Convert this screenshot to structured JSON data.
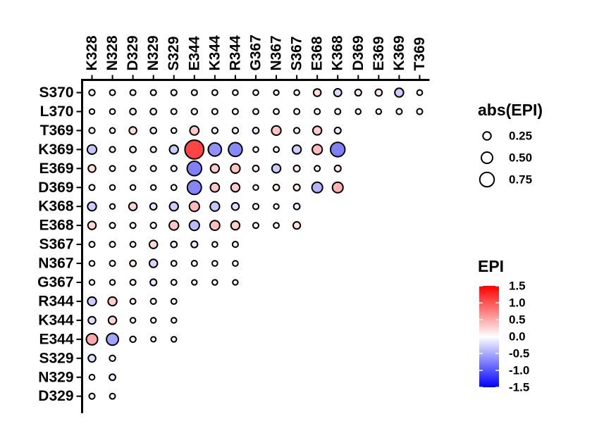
{
  "chart_data": {
    "type": "bubble-heatmap",
    "title": "",
    "xlabel": "",
    "ylabel": "",
    "x_categories": [
      "K328",
      "N328",
      "D329",
      "N329",
      "S329",
      "E344",
      "K344",
      "R344",
      "G367",
      "N367",
      "S367",
      "E368",
      "K368",
      "D369",
      "E369",
      "K369",
      "T369"
    ],
    "y_categories": [
      "S370",
      "L370",
      "T369",
      "K369",
      "E369",
      "D369",
      "K368",
      "E368",
      "S367",
      "N367",
      "G367",
      "R344",
      "K344",
      "E344",
      "S329",
      "N329",
      "D329"
    ],
    "size_legend": {
      "title": "abs(EPI)",
      "values": [
        0.25,
        0.5,
        0.75
      ],
      "labels": [
        "0.25",
        "0.50",
        "0.75"
      ]
    },
    "color_legend": {
      "title": "EPI",
      "range": [
        -1.5,
        1.5
      ],
      "ticks": [
        1.5,
        1.0,
        0.5,
        0.0,
        -0.5,
        -1.0,
        -1.5
      ],
      "tick_labels": [
        "1.5",
        "1.0",
        "0.5",
        "0.0",
        "-0.5",
        "-1.0",
        "-1.5"
      ],
      "colors": {
        "low": "#0000ff",
        "mid": "#ffffff",
        "high": "#ff0000"
      }
    },
    "points": [
      {
        "x": "K328",
        "y": "S370",
        "epi": 0.08
      },
      {
        "x": "N328",
        "y": "S370",
        "epi": 0.05
      },
      {
        "x": "D329",
        "y": "S370",
        "epi": 0.06
      },
      {
        "x": "N329",
        "y": "S370",
        "epi": 0.06
      },
      {
        "x": "S329",
        "y": "S370",
        "epi": 0.07
      },
      {
        "x": "E344",
        "y": "S370",
        "epi": 0.06
      },
      {
        "x": "K344",
        "y": "S370",
        "epi": 0.05
      },
      {
        "x": "R344",
        "y": "S370",
        "epi": 0.04
      },
      {
        "x": "G367",
        "y": "S370",
        "epi": 0.04
      },
      {
        "x": "N367",
        "y": "S370",
        "epi": 0.02
      },
      {
        "x": "S367",
        "y": "S370",
        "epi": 0.04
      },
      {
        "x": "E368",
        "y": "S370",
        "epi": 0.2
      },
      {
        "x": "K368",
        "y": "S370",
        "epi": -0.22
      },
      {
        "x": "D369",
        "y": "S370",
        "epi": 0.12
      },
      {
        "x": "E369",
        "y": "S370",
        "epi": 0.15
      },
      {
        "x": "K369",
        "y": "S370",
        "epi": -0.3
      },
      {
        "x": "T369",
        "y": "S370",
        "epi": 0.04
      },
      {
        "x": "K328",
        "y": "L370",
        "epi": 0.02
      },
      {
        "x": "N328",
        "y": "L370",
        "epi": 0.04
      },
      {
        "x": "D329",
        "y": "L370",
        "epi": 0.1
      },
      {
        "x": "N329",
        "y": "L370",
        "epi": -0.1
      },
      {
        "x": "S329",
        "y": "L370",
        "epi": 0.06
      },
      {
        "x": "E344",
        "y": "L370",
        "epi": 0.08
      },
      {
        "x": "K344",
        "y": "L370",
        "epi": 0.06
      },
      {
        "x": "R344",
        "y": "L370",
        "epi": 0.06
      },
      {
        "x": "G367",
        "y": "L370",
        "epi": 0.05
      },
      {
        "x": "N367",
        "y": "L370",
        "epi": 0.05
      },
      {
        "x": "S367",
        "y": "L370",
        "epi": 0.06
      },
      {
        "x": "E368",
        "y": "L370",
        "epi": 0.06
      },
      {
        "x": "K368",
        "y": "L370",
        "epi": 0.06
      },
      {
        "x": "D369",
        "y": "L370",
        "epi": 0.03
      },
      {
        "x": "E369",
        "y": "L370",
        "epi": 0.03
      },
      {
        "x": "K369",
        "y": "L370",
        "epi": 0.06
      },
      {
        "x": "T369",
        "y": "L370",
        "epi": 0.06
      },
      {
        "x": "K328",
        "y": "T369",
        "epi": 0.07
      },
      {
        "x": "N328",
        "y": "T369",
        "epi": 0.04
      },
      {
        "x": "D329",
        "y": "T369",
        "epi": 0.2
      },
      {
        "x": "N329",
        "y": "T369",
        "epi": -0.1
      },
      {
        "x": "S329",
        "y": "T369",
        "epi": 0.04
      },
      {
        "x": "E344",
        "y": "T369",
        "epi": 0.32
      },
      {
        "x": "K344",
        "y": "T369",
        "epi": 0.08
      },
      {
        "x": "R344",
        "y": "T369",
        "epi": 0.08
      },
      {
        "x": "G367",
        "y": "T369",
        "epi": -0.1
      },
      {
        "x": "N367",
        "y": "T369",
        "epi": 0.35
      },
      {
        "x": "S367",
        "y": "T369",
        "epi": 0.07
      },
      {
        "x": "E368",
        "y": "T369",
        "epi": 0.3
      },
      {
        "x": "K368",
        "y": "T369",
        "epi": -0.12
      },
      {
        "x": "K328",
        "y": "K369",
        "epi": -0.35
      },
      {
        "x": "N328",
        "y": "K369",
        "epi": 0.06
      },
      {
        "x": "D329",
        "y": "K369",
        "epi": -0.1
      },
      {
        "x": "N329",
        "y": "K369",
        "epi": 0.07
      },
      {
        "x": "S329",
        "y": "K369",
        "epi": -0.3
      },
      {
        "x": "E344",
        "y": "K369",
        "epi": 1.1
      },
      {
        "x": "K344",
        "y": "K369",
        "epi": -0.65
      },
      {
        "x": "R344",
        "y": "K369",
        "epi": -0.7
      },
      {
        "x": "G367",
        "y": "K369",
        "epi": 0.04
      },
      {
        "x": "N367",
        "y": "K369",
        "epi": 0.05
      },
      {
        "x": "S367",
        "y": "K369",
        "epi": -0.3
      },
      {
        "x": "E368",
        "y": "K369",
        "epi": 0.4
      },
      {
        "x": "K368",
        "y": "K369",
        "epi": -0.75
      },
      {
        "x": "K328",
        "y": "E369",
        "epi": 0.2
      },
      {
        "x": "N328",
        "y": "E369",
        "epi": 0.05
      },
      {
        "x": "D329",
        "y": "E369",
        "epi": 0.06
      },
      {
        "x": "N329",
        "y": "E369",
        "epi": 0.06
      },
      {
        "x": "S329",
        "y": "E369",
        "epi": 0.07
      },
      {
        "x": "E344",
        "y": "E369",
        "epi": -0.75
      },
      {
        "x": "K344",
        "y": "E369",
        "epi": 0.3
      },
      {
        "x": "R344",
        "y": "E369",
        "epi": 0.35
      },
      {
        "x": "G367",
        "y": "E369",
        "epi": 0.1
      },
      {
        "x": "N367",
        "y": "E369",
        "epi": -0.3
      },
      {
        "x": "S367",
        "y": "E369",
        "epi": 0.12
      },
      {
        "x": "E368",
        "y": "E369",
        "epi": 0.06
      },
      {
        "x": "K368",
        "y": "E369",
        "epi": 0.12
      },
      {
        "x": "K328",
        "y": "D369",
        "epi": 0.06
      },
      {
        "x": "N328",
        "y": "D369",
        "epi": 0.03
      },
      {
        "x": "D329",
        "y": "D369",
        "epi": 0.03
      },
      {
        "x": "N329",
        "y": "D369",
        "epi": 0.03
      },
      {
        "x": "S329",
        "y": "D369",
        "epi": 0.05
      },
      {
        "x": "E344",
        "y": "D369",
        "epi": -0.72
      },
      {
        "x": "K344",
        "y": "D369",
        "epi": 0.32
      },
      {
        "x": "R344",
        "y": "D369",
        "epi": 0.3
      },
      {
        "x": "G367",
        "y": "D369",
        "epi": 0.03
      },
      {
        "x": "N367",
        "y": "D369",
        "epi": 0.1
      },
      {
        "x": "S367",
        "y": "D369",
        "epi": 0.12
      },
      {
        "x": "E368",
        "y": "D369",
        "epi": -0.45
      },
      {
        "x": "K368",
        "y": "D369",
        "epi": 0.45
      },
      {
        "x": "K328",
        "y": "K368",
        "epi": -0.3
      },
      {
        "x": "N328",
        "y": "K368",
        "epi": 0.02
      },
      {
        "x": "D329",
        "y": "K368",
        "epi": 0.25
      },
      {
        "x": "N329",
        "y": "K368",
        "epi": -0.15
      },
      {
        "x": "S329",
        "y": "K368",
        "epi": -0.3
      },
      {
        "x": "E344",
        "y": "K368",
        "epi": 0.4
      },
      {
        "x": "K344",
        "y": "K368",
        "epi": -0.35
      },
      {
        "x": "R344",
        "y": "K368",
        "epi": -0.2
      },
      {
        "x": "G367",
        "y": "K368",
        "epi": 0.07
      },
      {
        "x": "N367",
        "y": "K368",
        "epi": 0.02
      },
      {
        "x": "S367",
        "y": "K368",
        "epi": -0.1
      },
      {
        "x": "K328",
        "y": "E368",
        "epi": 0.25
      },
      {
        "x": "N328",
        "y": "E368",
        "epi": 0.06
      },
      {
        "x": "D329",
        "y": "E368",
        "epi": 0.06
      },
      {
        "x": "N329",
        "y": "E368",
        "epi": 0.08
      },
      {
        "x": "S329",
        "y": "E368",
        "epi": 0.35
      },
      {
        "x": "E344",
        "y": "E368",
        "epi": -0.4
      },
      {
        "x": "K344",
        "y": "E368",
        "epi": 0.38
      },
      {
        "x": "R344",
        "y": "E368",
        "epi": 0.3
      },
      {
        "x": "G367",
        "y": "E368",
        "epi": 0.06
      },
      {
        "x": "N367",
        "y": "E368",
        "epi": 0.05
      },
      {
        "x": "S367",
        "y": "E368",
        "epi": 0.18
      },
      {
        "x": "K328",
        "y": "S367",
        "epi": 0.06
      },
      {
        "x": "N328",
        "y": "S367",
        "epi": 0.06
      },
      {
        "x": "D329",
        "y": "S367",
        "epi": 0.05
      },
      {
        "x": "N329",
        "y": "S367",
        "epi": 0.25
      },
      {
        "x": "S329",
        "y": "S367",
        "epi": -0.1
      },
      {
        "x": "E344",
        "y": "S367",
        "epi": -0.12
      },
      {
        "x": "K344",
        "y": "S367",
        "epi": 0.04
      },
      {
        "x": "R344",
        "y": "S367",
        "epi": -0.06
      },
      {
        "x": "K328",
        "y": "N367",
        "epi": 0.04
      },
      {
        "x": "N328",
        "y": "N367",
        "epi": 0.06
      },
      {
        "x": "D329",
        "y": "N367",
        "epi": 0.1
      },
      {
        "x": "N329",
        "y": "N367",
        "epi": -0.25
      },
      {
        "x": "S329",
        "y": "N367",
        "epi": 0.05
      },
      {
        "x": "E344",
        "y": "N367",
        "epi": -0.06
      },
      {
        "x": "K344",
        "y": "N367",
        "epi": 0.04
      },
      {
        "x": "R344",
        "y": "N367",
        "epi": 0.04
      },
      {
        "x": "K328",
        "y": "G367",
        "epi": 0.03
      },
      {
        "x": "N328",
        "y": "G367",
        "epi": 0.03
      },
      {
        "x": "D329",
        "y": "G367",
        "epi": 0.06
      },
      {
        "x": "N329",
        "y": "G367",
        "epi": -0.12
      },
      {
        "x": "S329",
        "y": "G367",
        "epi": 0.05
      },
      {
        "x": "E344",
        "y": "G367",
        "epi": 0.02
      },
      {
        "x": "K344",
        "y": "G367",
        "epi": 0.03
      },
      {
        "x": "R344",
        "y": "G367",
        "epi": 0.02
      },
      {
        "x": "K328",
        "y": "R344",
        "epi": -0.3
      },
      {
        "x": "N328",
        "y": "R344",
        "epi": 0.3
      },
      {
        "x": "D329",
        "y": "R344",
        "epi": 0.05
      },
      {
        "x": "N329",
        "y": "R344",
        "epi": 0.06
      },
      {
        "x": "S329",
        "y": "R344",
        "epi": 0.05
      },
      {
        "x": "K328",
        "y": "K344",
        "epi": -0.2
      },
      {
        "x": "N328",
        "y": "K344",
        "epi": 0.25
      },
      {
        "x": "D329",
        "y": "K344",
        "epi": 0.03
      },
      {
        "x": "N329",
        "y": "K344",
        "epi": 0.03
      },
      {
        "x": "S329",
        "y": "K344",
        "epi": 0.03
      },
      {
        "x": "K328",
        "y": "E344",
        "epi": 0.5
      },
      {
        "x": "N328",
        "y": "E344",
        "epi": -0.55
      },
      {
        "x": "D329",
        "y": "E344",
        "epi": 0.08
      },
      {
        "x": "N329",
        "y": "E344",
        "epi": 0.01
      },
      {
        "x": "S329",
        "y": "E344",
        "epi": 0.03
      },
      {
        "x": "K328",
        "y": "S329",
        "epi": -0.2
      },
      {
        "x": "N328",
        "y": "S329",
        "epi": 0.08
      },
      {
        "x": "K328",
        "y": "N329",
        "epi": 0.04
      },
      {
        "x": "N328",
        "y": "N329",
        "epi": -0.1
      },
      {
        "x": "K328",
        "y": "D329",
        "epi": 0.06
      },
      {
        "x": "N328",
        "y": "D329",
        "epi": 0.05
      }
    ]
  }
}
